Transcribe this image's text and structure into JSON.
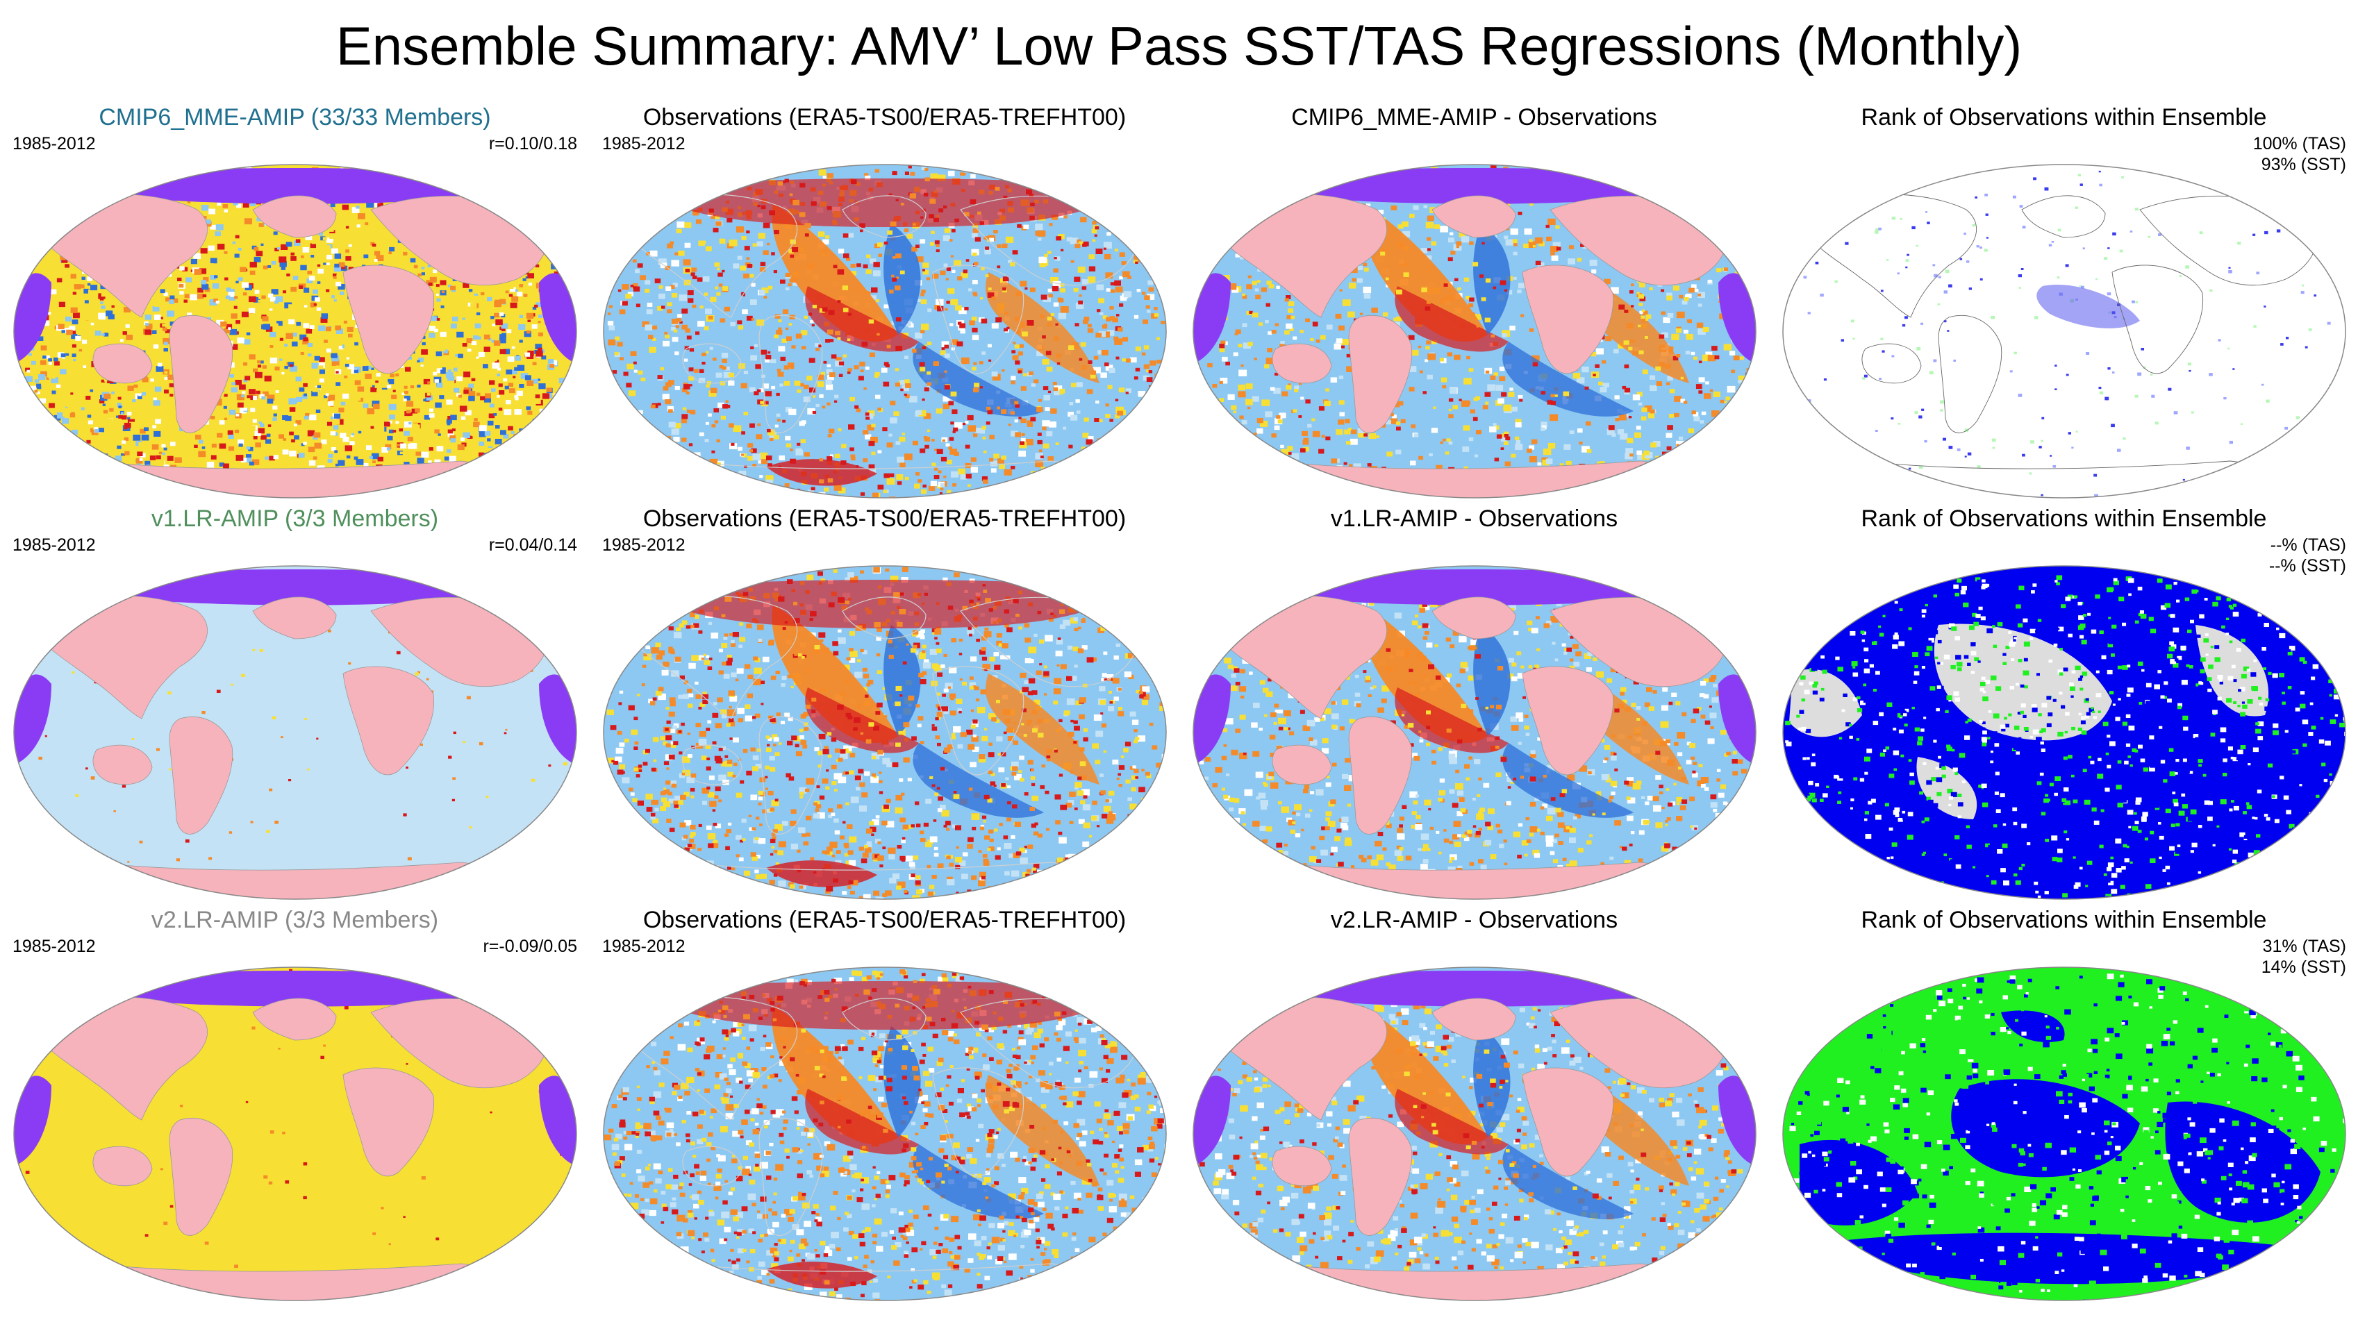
{
  "title": "Ensemble Summary: AMV’ Low Pass SST/TAS Regressions (Monthly)",
  "colors": {
    "land": "#f7b3bc",
    "ice": "#8a3cf5",
    "warm": "#d7191c",
    "orange": "#f58a28",
    "yellow": "#f8df34",
    "lightblue": "#8cc8f2",
    "blue": "#2e6fd8",
    "pale_blue": "#c4e2f6",
    "rank_blue": "#0000f0",
    "rank_green": "#20f020",
    "rank_grey": "#dddddd"
  },
  "rows": [
    {
      "model": {
        "title": "CMIP6_MME-AMIP (33/33 Members)",
        "title_color": "#1f6f8f",
        "period": "1985-2012",
        "correlation": "r=0.10/0.18",
        "style": "noisy"
      },
      "obs": {
        "title": "Observations (ERA5-TS00/ERA5-TREFHT00)",
        "period": "1985-2012"
      },
      "diff": {
        "title": "CMIP6_MME-AMIP - Observations"
      },
      "rank": {
        "title": "Rank of Observations within Ensemble",
        "tas": "100% (TAS)",
        "sst": "93% (SST)",
        "style": "sparse"
      }
    },
    {
      "model": {
        "title": "v1.LR-AMIP (3/3 Members)",
        "title_color": "#4f8f5c",
        "period": "1985-2012",
        "correlation": "r=0.04/0.14",
        "style": "lightblue"
      },
      "obs": {
        "title": "Observations (ERA5-TS00/ERA5-TREFHT00)",
        "period": "1985-2012"
      },
      "diff": {
        "title": "v1.LR-AMIP - Observations"
      },
      "rank": {
        "title": "Rank of Observations within Ensemble",
        "tas": "--% (TAS)",
        "sst": "--% (SST)",
        "style": "blue-grey"
      }
    },
    {
      "model": {
        "title": "v2.LR-AMIP (3/3 Members)",
        "title_color": "#888888",
        "period": "1985-2012",
        "correlation": "r=-0.09/0.05",
        "style": "yellow"
      },
      "obs": {
        "title": "Observations (ERA5-TS00/ERA5-TREFHT00)",
        "period": "1985-2012"
      },
      "diff": {
        "title": "v2.LR-AMIP - Observations"
      },
      "rank": {
        "title": "Rank of Observations within Ensemble",
        "tas": "31% (TAS)",
        "sst": "14% (SST)",
        "style": "blue-green"
      }
    }
  ]
}
